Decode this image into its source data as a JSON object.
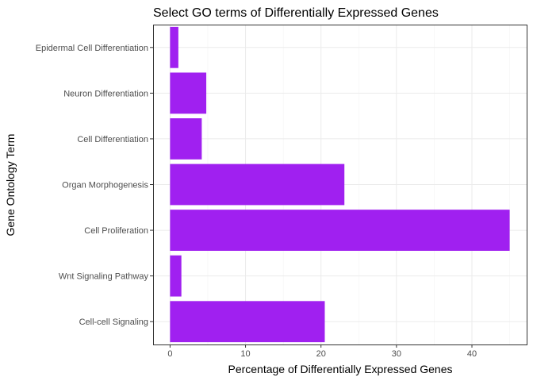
{
  "chart_data": {
    "type": "bar",
    "orientation": "horizontal",
    "title": "Select GO terms of Differentially Expressed Genes",
    "xlabel": "Percentage of Differentially Expressed Genes",
    "ylabel": "Gene Ontology Term",
    "categories": [
      "Epidermal Cell Differentiation",
      "Neuron Differentiation",
      "Cell Differentiation",
      "Organ Morphogenesis",
      "Cell Proliferation",
      "Wnt Signaling Pathway",
      "Cell-cell Signaling"
    ],
    "values": [
      1.1,
      4.8,
      4.2,
      23.1,
      45.0,
      1.5,
      20.5
    ],
    "xlim": [
      -2.25,
      47.25
    ],
    "xticks": [
      0,
      10,
      20,
      30,
      40
    ],
    "bar_color": "#A020F0",
    "grid": true,
    "legend": "none"
  }
}
